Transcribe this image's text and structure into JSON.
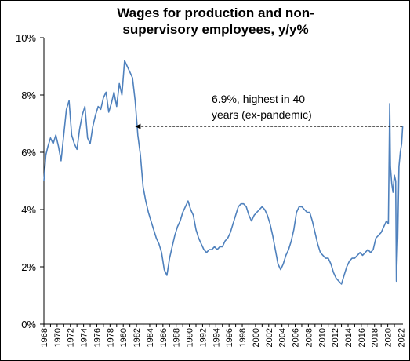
{
  "chart_data": {
    "type": "line",
    "title": "Wages for production and non-supervisory employees, y/y%",
    "title_lines": [
      "Wages for production and non-",
      "supervisory employees, y/y%"
    ],
    "xlabel": "",
    "ylabel": "",
    "ylim": [
      0,
      10
    ],
    "yticks": [
      0,
      2,
      4,
      6,
      8,
      10
    ],
    "ytick_labels": [
      "0%",
      "2%",
      "4%",
      "6%",
      "8%",
      "10%"
    ],
    "xlim": [
      1968,
      2022.3
    ],
    "xtick_labels": [
      "1968",
      "1970",
      "1972",
      "1974",
      "1976",
      "1978",
      "1980",
      "1982",
      "1984",
      "1986",
      "1988",
      "1990",
      "1992",
      "1994",
      "1996",
      "1998",
      "2000",
      "2002",
      "2004",
      "2006",
      "2008",
      "2010",
      "2012",
      "2014",
      "2016",
      "2018",
      "2020",
      "2022"
    ],
    "grid": false,
    "legend": "none",
    "line_color": "#4f81bd",
    "series": [
      {
        "x": [
          1968.0,
          1968.3,
          1968.6,
          1969.0,
          1969.4,
          1969.8,
          1970.2,
          1970.6,
          1971.0,
          1971.4,
          1971.8,
          1972.2,
          1972.6,
          1973.0,
          1973.4,
          1973.8,
          1974.2,
          1974.6,
          1975.0,
          1975.4,
          1975.8,
          1976.2,
          1976.6,
          1977.0,
          1977.4,
          1977.8,
          1978.2,
          1978.6,
          1979.0,
          1979.4,
          1979.8,
          1980.2,
          1980.6,
          1981.0,
          1981.4,
          1981.8,
          1982.2,
          1982.6,
          1983.0,
          1983.4,
          1983.8,
          1984.2,
          1984.6,
          1985.0,
          1985.4,
          1985.8,
          1986.2,
          1986.6,
          1987.0,
          1987.4,
          1987.8,
          1988.2,
          1988.6,
          1989.0,
          1989.4,
          1989.8,
          1990.2,
          1990.6,
          1991.0,
          1991.4,
          1991.8,
          1992.2,
          1992.6,
          1993.0,
          1993.4,
          1993.8,
          1994.2,
          1994.6,
          1995.0,
          1995.4,
          1995.8,
          1996.2,
          1996.6,
          1997.0,
          1997.4,
          1997.8,
          1998.2,
          1998.6,
          1999.0,
          1999.4,
          1999.8,
          2000.2,
          2000.6,
          2001.0,
          2001.4,
          2001.8,
          2002.2,
          2002.6,
          2003.0,
          2003.4,
          2003.8,
          2004.2,
          2004.6,
          2005.0,
          2005.4,
          2005.8,
          2006.2,
          2006.6,
          2007.0,
          2007.4,
          2007.8,
          2008.2,
          2008.6,
          2009.0,
          2009.4,
          2009.8,
          2010.2,
          2010.6,
          2011.0,
          2011.4,
          2011.8,
          2012.2,
          2012.6,
          2013.0,
          2013.4,
          2013.8,
          2014.2,
          2014.6,
          2015.0,
          2015.4,
          2015.8,
          2016.2,
          2016.6,
          2017.0,
          2017.4,
          2017.8,
          2018.2,
          2018.6,
          2019.0,
          2019.4,
          2019.8,
          2020.1,
          2020.3,
          2020.4,
          2020.6,
          2020.8,
          2021.0,
          2021.2,
          2021.3,
          2021.5,
          2021.7,
          2021.9,
          2022.1,
          2022.25
        ],
        "y": [
          5.0,
          5.9,
          6.2,
          6.5,
          6.3,
          6.6,
          6.2,
          5.7,
          6.6,
          7.5,
          7.8,
          6.6,
          6.3,
          6.1,
          6.8,
          7.3,
          7.6,
          6.5,
          6.3,
          6.9,
          7.3,
          7.6,
          7.5,
          7.9,
          8.1,
          7.4,
          7.7,
          8.1,
          7.6,
          8.4,
          8.0,
          9.2,
          9.0,
          8.8,
          8.6,
          7.8,
          6.6,
          5.9,
          4.8,
          4.3,
          3.9,
          3.6,
          3.3,
          3.0,
          2.8,
          2.5,
          1.9,
          1.7,
          2.3,
          2.7,
          3.1,
          3.4,
          3.6,
          3.9,
          4.1,
          4.3,
          4.0,
          3.8,
          3.3,
          3.0,
          2.8,
          2.6,
          2.5,
          2.6,
          2.6,
          2.7,
          2.6,
          2.7,
          2.7,
          2.9,
          3.0,
          3.2,
          3.5,
          3.8,
          4.1,
          4.2,
          4.2,
          4.1,
          3.8,
          3.6,
          3.8,
          3.9,
          4.0,
          4.1,
          4.0,
          3.8,
          3.5,
          3.1,
          2.6,
          2.1,
          1.9,
          2.1,
          2.4,
          2.6,
          2.9,
          3.3,
          3.9,
          4.1,
          4.1,
          4.0,
          3.9,
          3.9,
          3.6,
          3.2,
          2.8,
          2.5,
          2.4,
          2.3,
          2.3,
          2.1,
          1.8,
          1.6,
          1.5,
          1.4,
          1.7,
          2.0,
          2.2,
          2.3,
          2.3,
          2.4,
          2.5,
          2.4,
          2.5,
          2.6,
          2.5,
          2.6,
          3.0,
          3.1,
          3.2,
          3.4,
          3.6,
          3.5,
          7.7,
          5.5,
          4.9,
          4.6,
          5.2,
          5.0,
          1.5,
          3.0,
          5.5,
          6.0,
          6.3,
          6.9
        ]
      }
    ],
    "annotation": {
      "text_lines": [
        "6.9%, highest in 40",
        "years (ex-pandemic)"
      ],
      "value": 6.9,
      "arrow_from_x": 2022.2,
      "arrow_to_x": 1981.8
    }
  }
}
